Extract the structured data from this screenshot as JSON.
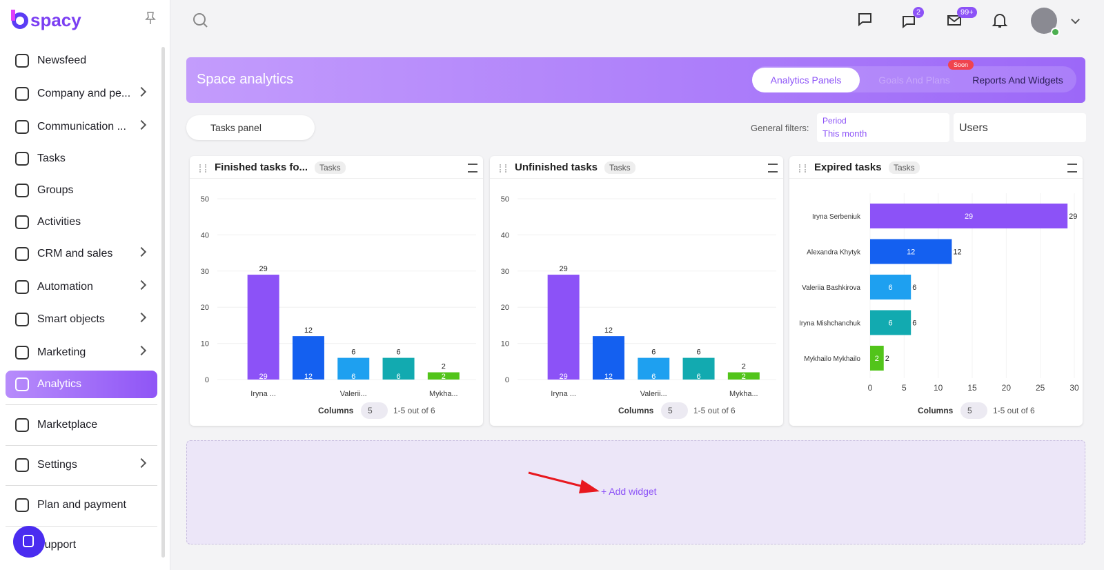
{
  "sidebar": {
    "logo": "spacy",
    "items": [
      "Newsfeed",
      "Company and pe...",
      "Communication ...",
      "Tasks",
      "Groups",
      "Activities",
      "CRM and sales",
      "Automation",
      "Smart objects",
      "Marketing",
      "Analytics",
      "Marketplace",
      "Settings",
      "Plan and payment",
      "Support"
    ]
  },
  "header": {
    "chat_badge": "2",
    "mail_badge": "99+"
  },
  "page": {
    "title": "Space analytics",
    "tabs": [
      "Analytics Panels",
      "Goals And Plans",
      "Reports And Widgets"
    ],
    "soon": "Soon"
  },
  "toolbar": {
    "panel": "Tasks panel",
    "filters_label": "General filters:",
    "period_label": "Period",
    "period_value": "This month",
    "users": "Users"
  },
  "widgets": [
    {
      "title": "Finished tasks fo...",
      "tag": "Tasks",
      "chart": {
        "type": "bar",
        "categories": [
          "Iryna ...",
          null,
          "Valerii...",
          null,
          "Mykha..."
        ],
        "values": [
          29,
          12,
          6,
          6,
          2
        ],
        "colors": [
          "#8c52f7",
          "#1460f0",
          "#1ea0f0",
          "#12aab0",
          "#52c41a"
        ],
        "ylim": [
          0,
          50
        ],
        "yticks": [
          0,
          10,
          20,
          30,
          40,
          50
        ],
        "grid": true
      },
      "footer": {
        "columns_label": "Columns",
        "page_size": 5,
        "range": "1-5 out of 6"
      }
    },
    {
      "title": "Unfinished tasks",
      "tag": "Tasks",
      "chart": {
        "type": "bar",
        "categories": [
          "Iryna ...",
          null,
          "Valerii...",
          null,
          "Mykha..."
        ],
        "values": [
          29,
          12,
          6,
          6,
          2
        ],
        "colors": [
          "#8c52f7",
          "#1460f0",
          "#1ea0f0",
          "#12aab0",
          "#52c41a"
        ],
        "ylim": [
          0,
          50
        ],
        "yticks": [
          0,
          10,
          20,
          30,
          40,
          50
        ],
        "grid": true
      },
      "footer": {
        "columns_label": "Columns",
        "page_size": 5,
        "range": "1-5 out of 6"
      }
    },
    {
      "title": "Expired tasks",
      "tag": "Tasks",
      "chart": {
        "type": "hbar",
        "categories": [
          "Iryna Serbeniuk",
          "Alexandra Khytyk",
          "Valeriia Bashkirova",
          "Iryna Mishchanchuk",
          "Mykhailo Mykhailo"
        ],
        "values": [
          29,
          12,
          6,
          6,
          2
        ],
        "colors": [
          "#8c52f7",
          "#1460f0",
          "#1ea0f0",
          "#12aab0",
          "#52c41a"
        ],
        "xlim": [
          0,
          30
        ],
        "xticks": [
          0,
          5,
          10,
          15,
          20,
          25,
          30
        ],
        "grid": true
      },
      "footer": {
        "columns_label": "Columns",
        "page_size": 5,
        "range": "1-5 out of 6"
      }
    }
  ],
  "add_widget": "Add widget"
}
